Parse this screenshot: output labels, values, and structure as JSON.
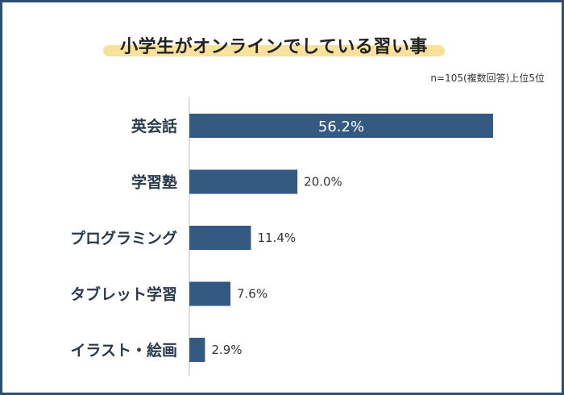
{
  "chart_data": {
    "type": "bar",
    "orientation": "horizontal",
    "title": "小学生がオンラインでしている習い事",
    "subtitle": "n=105(複数回答)上位5位",
    "categories": [
      "英会話",
      "学習塾",
      "プログラミング",
      "タブレット学習",
      "イラスト・絵画"
    ],
    "values": [
      56.2,
      20.0,
      11.4,
      7.6,
      2.9
    ],
    "value_labels": [
      "56.2%",
      "20.0%",
      "11.4%",
      "7.6%",
      "2.9%"
    ],
    "xlim": [
      0,
      57
    ],
    "grid": false,
    "legend": "none",
    "colors": {
      "bar": "#355a82",
      "frame": "#2f4e76",
      "highlight": "#f6dc8a"
    }
  }
}
